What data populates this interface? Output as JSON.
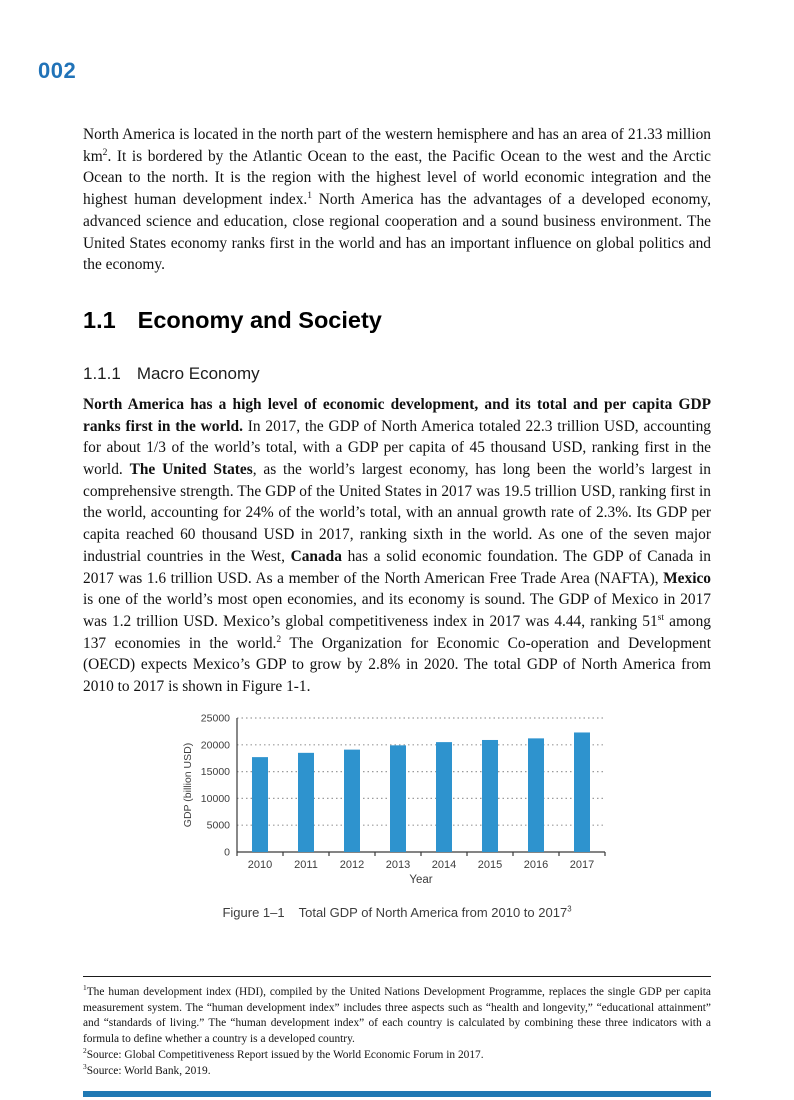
{
  "page": {
    "number": "002",
    "accent_color": "#2173b8"
  },
  "intro_paragraph": {
    "s1": "North America is located in the north part of the western hemisphere and has an area of 21.33 million km",
    "sup1": "2",
    "s2": ". It is bordered by the Atlantic Ocean to the east, the Pacific Ocean to the west and the Arctic Ocean to the north. It is the region with the highest level of world economic integration and the highest human development index.",
    "sup2": "1",
    "s3": " North America has the advantages of a developed economy, advanced science and education, close regional cooperation and a sound business environment. The United States economy ranks first in the world and has an important influence on global politics and the economy."
  },
  "section": {
    "number": "1.1",
    "title": "Economy and Society"
  },
  "subsection": {
    "number": "1.1.1",
    "title": "Macro Economy"
  },
  "body_paragraph": {
    "b1": "North America has a high level of economic development, and its total and per capita GDP ranks first in the world.",
    "s1": " In 2017, the GDP of North America totaled 22.3 trillion USD, accounting for about 1/3 of the world’s total, with a GDP per capita of 45 thousand USD, ranking first in the world. ",
    "b2": "The United States",
    "s2": ", as the world’s largest economy, has long been the world’s largest in comprehensive strength. The GDP of the United States in 2017 was 19.5 trillion USD, ranking first in the world, accounting for 24% of the world’s total, with an annual growth rate of 2.3%. Its GDP per capita reached 60 thousand USD in 2017, ranking sixth in the world. As one of the seven major industrial countries in the West, ",
    "b3": "Canada",
    "s3": " has a solid economic foundation. The GDP of Canada in 2017 was 1.6 trillion USD. As a member of the North American Free Trade Area (NAFTA), ",
    "b4": "Mexico",
    "s4": " is one of the world’s most open economies, and its economy is sound. The GDP of Mexico in 2017 was 1.2 trillion USD. Mexico’s global competitiveness index in 2017 was 4.44, ranking 51",
    "sup_st": "st",
    "s5": " among 137 economies in the world.",
    "sup_fn": "2",
    "s6": " The Organization for Economic Co-operation and Development (OECD) expects Mexico’s GDP to grow by 2.8% in 2020. The total GDP of North America from 2010 to 2017 is shown in Figure 1-1."
  },
  "chart_data": {
    "type": "bar",
    "title": "",
    "categories": [
      "2010",
      "2011",
      "2012",
      "2013",
      "2014",
      "2015",
      "2016",
      "2017"
    ],
    "values": [
      17700,
      18500,
      19100,
      19900,
      20500,
      20900,
      21200,
      22300
    ],
    "xlabel": "Year",
    "ylabel": "GDP (billion USD)",
    "ylim": [
      0,
      25000
    ],
    "yticks": [
      0,
      5000,
      10000,
      15000,
      20000,
      25000
    ],
    "grid": "horizontal dotted",
    "legend": "none",
    "bar_color": "#2e93ce",
    "grid_color": "#9b9b9b",
    "axis_color": "#3a3a3a",
    "text_color": "#3d3d3d"
  },
  "figure": {
    "label": "Figure 1–1",
    "title": "Total GDP of North America from 2010 to 2017",
    "fn_ref": "3"
  },
  "footnotes": [
    {
      "ref": "1",
      "text": "The human development index (HDI), compiled by the United Nations Development Programme, replaces the single GDP per capita measurement system. The “human development index” includes three aspects such as “health and longevity,” “educational attainment” and “standards of living.” The “human development index” of each country is calculated by combining these three indicators with a formula to define whether a country is a developed country."
    },
    {
      "ref": "2",
      "text": "Source: Global Competitiveness Report issued by the World Economic Forum in 2017."
    },
    {
      "ref": "3",
      "text": "Source: World Bank, 2019."
    }
  ]
}
